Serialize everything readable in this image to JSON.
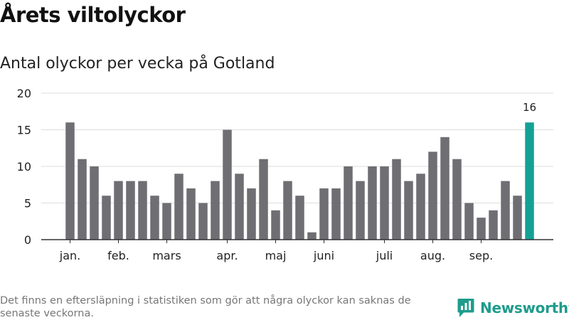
{
  "title": "Årets viltolyckor",
  "subtitle": "Antal olyckor per vecka på Gotland",
  "footnote": "Det finns en eftersläpning i statistiken som gör att några olyckor kan saknas de senaste veckorna.",
  "brand": "Newsworthy",
  "colors": {
    "bar": "#6f6e73",
    "highlight": "#13a196",
    "grid": "#dddddd",
    "axis": "#333333"
  },
  "chart_data": {
    "type": "bar",
    "title": "Antal olyckor per vecka på Gotland",
    "xlabel": "",
    "ylabel": "",
    "ylim": [
      0,
      20
    ],
    "yticks": [
      0,
      5,
      10,
      15,
      20
    ],
    "grid": true,
    "values": [
      16,
      11,
      10,
      6,
      8,
      8,
      8,
      6,
      5,
      9,
      7,
      5,
      8,
      15,
      9,
      7,
      11,
      4,
      8,
      6,
      1,
      7,
      7,
      10,
      8,
      10,
      10,
      11,
      8,
      9,
      12,
      14,
      11,
      5,
      3,
      4,
      8,
      6,
      16
    ],
    "highlight_index": 38,
    "highlight_label": "16",
    "month_labels": [
      {
        "label": "jan.",
        "week_index": 0
      },
      {
        "label": "feb.",
        "week_index": 4
      },
      {
        "label": "mars",
        "week_index": 8
      },
      {
        "label": "apr.",
        "week_index": 13
      },
      {
        "label": "maj",
        "week_index": 17
      },
      {
        "label": "juni",
        "week_index": 21
      },
      {
        "label": "juli",
        "week_index": 26
      },
      {
        "label": "aug.",
        "week_index": 30
      },
      {
        "label": "sep.",
        "week_index": 34
      }
    ]
  }
}
